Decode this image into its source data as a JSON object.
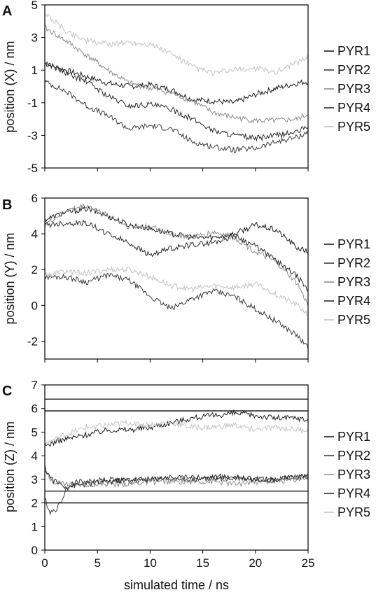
{
  "chart_data": [
    {
      "panel": "A",
      "type": "line",
      "ylabel": "position (X) / nm",
      "xlim": [
        0,
        25
      ],
      "ylim": [
        -5,
        5
      ],
      "yticks": [
        "5",
        "3",
        "1",
        "-1",
        "-3",
        "-5"
      ],
      "legend_placement": "right",
      "series": [
        {
          "name": "PYR1",
          "color": "#1a1a1a",
          "x": [
            0,
            2,
            4,
            6,
            8,
            10,
            12,
            14,
            16,
            18,
            20,
            22,
            24,
            25
          ],
          "values": [
            1.4,
            1.0,
            0.6,
            0.2,
            0.0,
            0.1,
            -0.2,
            -0.8,
            -0.9,
            -1.0,
            -0.5,
            -0.1,
            0.2,
            0.3
          ]
        },
        {
          "name": "PYR2",
          "color": "#3c3c3c",
          "x": [
            0,
            2,
            4,
            6,
            8,
            10,
            12,
            14,
            16,
            18,
            20,
            22,
            24,
            25
          ],
          "values": [
            0.3,
            -0.3,
            -1.2,
            -1.8,
            -2.6,
            -2.4,
            -2.6,
            -3.4,
            -3.7,
            -3.9,
            -3.8,
            -3.4,
            -3.1,
            -2.8
          ]
        },
        {
          "name": "PYR3",
          "color": "#8c8c8c",
          "x": [
            0,
            2,
            4,
            6,
            8,
            10,
            12,
            14,
            16,
            18,
            20,
            22,
            24,
            25
          ],
          "values": [
            3.6,
            2.8,
            1.9,
            1.0,
            0.2,
            -0.1,
            -0.4,
            -0.9,
            -1.6,
            -1.9,
            -2.1,
            -2.1,
            -2.0,
            -1.7
          ]
        },
        {
          "name": "PYR4",
          "color": "#2a2a2a",
          "x": [
            0,
            2,
            4,
            6,
            8,
            10,
            12,
            14,
            16,
            18,
            20,
            22,
            24,
            25
          ],
          "values": [
            1.5,
            0.8,
            0.3,
            -0.6,
            -1.2,
            -1.1,
            -1.4,
            -2.0,
            -2.7,
            -3.0,
            -3.2,
            -3.0,
            -2.8,
            -2.4
          ]
        },
        {
          "name": "PYR5",
          "color": "#c4c4c4",
          "x": [
            0,
            2,
            4,
            6,
            8,
            10,
            12,
            14,
            16,
            18,
            20,
            22,
            24,
            25
          ],
          "values": [
            4.5,
            3.4,
            2.8,
            2.6,
            2.7,
            2.6,
            2.0,
            1.2,
            0.8,
            1.0,
            1.1,
            0.9,
            1.5,
            1.8
          ]
        }
      ]
    },
    {
      "panel": "B",
      "type": "line",
      "ylabel": "position (Y) / nm",
      "xlim": [
        0,
        25
      ],
      "ylim": [
        -3,
        6
      ],
      "yticks": [
        "6",
        "4",
        "2",
        "0",
        "-2"
      ],
      "legend_placement": "right",
      "series": [
        {
          "name": "PYR1",
          "color": "#1a1a1a",
          "x": [
            0,
            2,
            4,
            6,
            8,
            10,
            12,
            14,
            16,
            18,
            20,
            22,
            24,
            25
          ],
          "values": [
            4.8,
            5.2,
            5.4,
            5.0,
            4.5,
            4.3,
            4.0,
            3.8,
            3.8,
            4.0,
            4.5,
            4.2,
            3.2,
            3.0
          ]
        },
        {
          "name": "PYR2",
          "color": "#3c3c3c",
          "x": [
            0,
            2,
            4,
            6,
            8,
            10,
            12,
            14,
            16,
            18,
            20,
            22,
            24,
            25
          ],
          "values": [
            1.6,
            1.6,
            1.3,
            1.7,
            1.4,
            0.5,
            -0.2,
            0.4,
            0.8,
            0.5,
            -0.2,
            -0.9,
            -1.7,
            -2.4
          ]
        },
        {
          "name": "PYR3",
          "color": "#8c8c8c",
          "x": [
            0,
            2,
            4,
            6,
            8,
            10,
            12,
            14,
            16,
            18,
            20,
            22,
            24,
            25
          ],
          "values": [
            4.5,
            5.3,
            5.6,
            5.0,
            4.4,
            4.4,
            4.0,
            3.8,
            4.1,
            3.8,
            3.0,
            2.4,
            1.2,
            0.0
          ]
        },
        {
          "name": "PYR4",
          "color": "#2a2a2a",
          "x": [
            0,
            2,
            4,
            6,
            8,
            10,
            12,
            14,
            16,
            18,
            20,
            22,
            24,
            25
          ],
          "values": [
            4.5,
            4.6,
            4.6,
            4.0,
            3.5,
            2.8,
            3.2,
            3.4,
            3.5,
            3.9,
            3.3,
            2.5,
            1.6,
            0.8
          ]
        },
        {
          "name": "PYR5",
          "color": "#c4c4c4",
          "x": [
            0,
            2,
            4,
            6,
            8,
            10,
            12,
            14,
            16,
            18,
            20,
            22,
            24,
            25
          ],
          "values": [
            1.7,
            1.9,
            1.8,
            2.0,
            2.0,
            1.6,
            1.1,
            0.9,
            1.1,
            1.0,
            1.2,
            0.6,
            0.0,
            -0.5
          ]
        }
      ]
    },
    {
      "panel": "C",
      "type": "line",
      "ylabel": "position (Z) / nm",
      "xlabel": "simulated time / ns",
      "xlim": [
        0,
        25
      ],
      "ylim": [
        0,
        7
      ],
      "yticks": [
        "7",
        "6",
        "5",
        "4",
        "3",
        "2",
        "1",
        "0"
      ],
      "xticks": [
        "0",
        "5",
        "10",
        "15",
        "20",
        "25"
      ],
      "reference_lines": [
        6.4,
        5.9,
        2.5,
        2.0
      ],
      "legend_placement": "right",
      "series": [
        {
          "name": "PYR1",
          "color": "#1a1a1a",
          "x": [
            0,
            1,
            2,
            4,
            6,
            8,
            10,
            12,
            14,
            16,
            18,
            20,
            22,
            24,
            25
          ],
          "values": [
            4.4,
            4.6,
            4.7,
            4.9,
            5.1,
            5.1,
            5.2,
            5.4,
            5.6,
            5.7,
            5.8,
            5.7,
            5.6,
            5.6,
            5.5
          ]
        },
        {
          "name": "PYR2",
          "color": "#3c3c3c",
          "x": [
            0,
            0.5,
            1,
            1.5,
            2,
            3,
            4,
            6,
            8,
            10,
            12,
            14,
            16,
            18,
            20,
            22,
            24,
            25
          ],
          "values": [
            2.2,
            1.6,
            1.7,
            2.0,
            2.6,
            2.9,
            2.9,
            3.0,
            2.9,
            3.0,
            3.0,
            3.1,
            3.0,
            3.1,
            3.0,
            3.0,
            3.1,
            3.1
          ]
        },
        {
          "name": "PYR3",
          "color": "#8c8c8c",
          "x": [
            0,
            0.5,
            1,
            2,
            4,
            6,
            8,
            10,
            12,
            14,
            16,
            18,
            20,
            22,
            24,
            25
          ],
          "values": [
            3.3,
            3.0,
            2.9,
            2.8,
            2.8,
            2.8,
            2.8,
            2.9,
            2.9,
            2.9,
            2.9,
            2.8,
            2.9,
            2.9,
            3.0,
            3.1
          ]
        },
        {
          "name": "PYR4",
          "color": "#2a2a2a",
          "x": [
            0,
            0.5,
            1,
            2,
            4,
            6,
            8,
            10,
            12,
            14,
            16,
            18,
            20,
            22,
            24,
            25
          ],
          "values": [
            3.5,
            3.1,
            2.9,
            2.7,
            2.8,
            2.9,
            3.0,
            3.0,
            3.1,
            3.0,
            3.1,
            3.1,
            3.0,
            3.0,
            3.1,
            3.2
          ]
        },
        {
          "name": "PYR5",
          "color": "#c4c4c4",
          "x": [
            0,
            1,
            2,
            4,
            6,
            8,
            10,
            12,
            14,
            16,
            18,
            20,
            22,
            24,
            25
          ],
          "values": [
            4.5,
            4.7,
            4.9,
            5.2,
            5.3,
            5.4,
            5.3,
            5.4,
            5.2,
            5.2,
            5.3,
            5.1,
            5.2,
            5.1,
            5.1
          ]
        }
      ]
    }
  ]
}
